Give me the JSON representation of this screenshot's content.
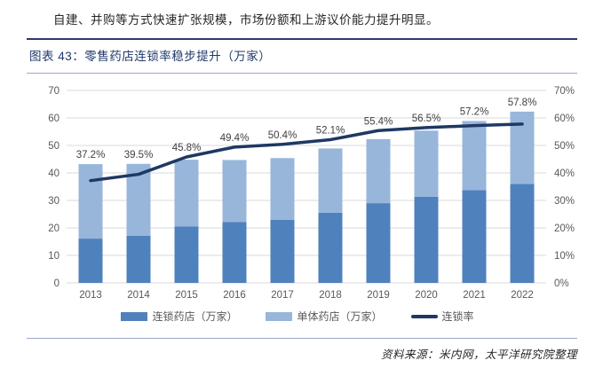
{
  "page": {
    "header_note": "自建、并购等方式快速扩张规模，市场份额和上游议价能力提升明显。",
    "figure_title": "图表 43：零售药店连锁率稳步提升（万家）",
    "source_text": "资料来源：米内网，太平洋研究院整理"
  },
  "colors": {
    "chain_bar": "#4f81bd",
    "single_bar": "#98b6da",
    "rate_line": "#1f3864",
    "gridline": "#d9d9d9",
    "axis_text": "#595959",
    "data_label_text": "#404040"
  },
  "chart_data": {
    "type": "bar",
    "subtype": "stacked-bars-with-line-overlay",
    "title": "零售药店连锁率稳步提升（万家）",
    "categories": [
      "2013",
      "2014",
      "2015",
      "2016",
      "2017",
      "2018",
      "2019",
      "2020",
      "2021",
      "2022"
    ],
    "series": [
      {
        "name": "连锁药店（万家）",
        "type": "bar",
        "stack": true,
        "values": [
          16.1,
          17.1,
          20.5,
          22.1,
          22.9,
          25.5,
          29.0,
          31.3,
          33.7,
          36.0
        ]
      },
      {
        "name": "单体药店（万家）",
        "type": "bar",
        "stack": true,
        "values": [
          27.1,
          26.2,
          24.3,
          22.6,
          22.5,
          23.4,
          23.3,
          24.1,
          25.2,
          26.3
        ]
      },
      {
        "name": "连锁率",
        "type": "line",
        "axis": "right",
        "values": [
          37.2,
          39.5,
          45.8,
          49.4,
          50.4,
          52.1,
          55.4,
          56.5,
          57.2,
          57.8
        ],
        "labels": [
          "37.2%",
          "39.5%",
          "45.8%",
          "49.4%",
          "50.4%",
          "52.1%",
          "55.4%",
          "56.5%",
          "57.2%",
          "57.8%"
        ]
      }
    ],
    "left_axis": {
      "min": 0,
      "max": 70,
      "step": 10,
      "ticks": [
        "0",
        "10",
        "20",
        "30",
        "40",
        "50",
        "60",
        "70"
      ]
    },
    "right_axis": {
      "min": 0,
      "max": 70,
      "step": 10,
      "ticks": [
        "0%",
        "10%",
        "20%",
        "30%",
        "40%",
        "50%",
        "60%",
        "70%"
      ]
    },
    "legend": [
      "连锁药店（万家）",
      "单体药店（万家）",
      "连锁率"
    ],
    "legend_position": "bottom",
    "grid": "horizontal-only",
    "xlabel": "",
    "ylabel": ""
  }
}
